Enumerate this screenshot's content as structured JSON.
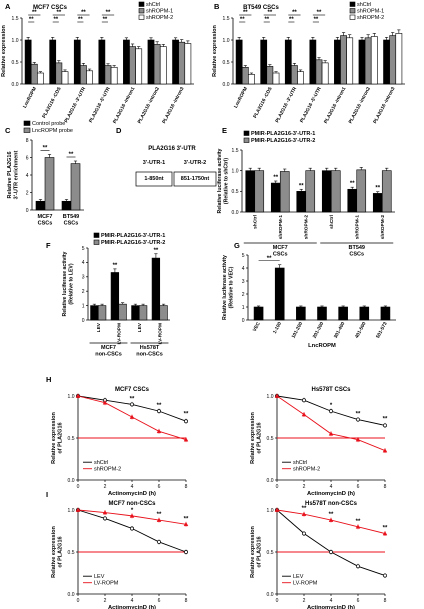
{
  "chart_data": [
    {
      "id": "A",
      "type": "bar",
      "panel_letter": "A",
      "title": "MCF7 CSCs",
      "ylabel": "Relative expression",
      "ylim": [
        0,
        1.5
      ],
      "yticks": [
        "0.0",
        "0.5",
        "1.0",
        "1.5"
      ],
      "categories": [
        "LncROPM",
        "PLA2G16 -CDS",
        "PLA2G16 -3'-UTR",
        "PLA2G16 -5'-UTR",
        "PLA2G16 -intron1",
        "PLA2G16 -intron2",
        "PLA2G16 -intron3"
      ],
      "series": [
        {
          "name": "shCtrl",
          "color": "#000000",
          "values": [
            1.0,
            1.0,
            1.0,
            1.0,
            1.0,
            1.0,
            1.0
          ],
          "err": [
            0.06,
            0.06,
            0.06,
            0.06,
            0.05,
            0.05,
            0.05
          ]
        },
        {
          "name": "shROPM-1",
          "color": "#8c8c8c",
          "values": [
            0.45,
            0.48,
            0.42,
            0.42,
            0.85,
            0.9,
            0.95
          ],
          "err": [
            0.04,
            0.05,
            0.05,
            0.04,
            0.06,
            0.06,
            0.06
          ]
        },
        {
          "name": "shROPM-2",
          "color": "#ffffff",
          "values": [
            0.25,
            0.28,
            0.3,
            0.38,
            0.8,
            0.85,
            0.92
          ],
          "err": [
            0.03,
            0.04,
            0.04,
            0.04,
            0.05,
            0.05,
            0.06
          ]
        }
      ],
      "sig": [
        {
          "group": 0,
          "label": "**",
          "row": "top"
        },
        {
          "group": 0,
          "label": "**",
          "row": "low"
        },
        {
          "group": 1,
          "label": "**",
          "row": "top"
        },
        {
          "group": 1,
          "label": "**",
          "row": "low"
        },
        {
          "group": 2,
          "label": "**",
          "row": "top"
        },
        {
          "group": 2,
          "label": "**",
          "row": "low"
        },
        {
          "group": 3,
          "label": "**",
          "row": "top"
        },
        {
          "group": 3,
          "label": "**",
          "row": "low"
        }
      ]
    },
    {
      "id": "B",
      "type": "bar",
      "panel_letter": "B",
      "title": "BT549 CSCs",
      "ylabel": "Relative expression",
      "ylim": [
        0,
        1.5
      ],
      "yticks": [
        "0.0",
        "0.5",
        "1.0",
        "1.5"
      ],
      "categories": [
        "LncROPM",
        "PLA2G16 -CDS",
        "PLA2G16 -3'-UTR",
        "PLA2G16 -5'-UTR",
        "PLA2G16 -intron1",
        "PLA2G16 -intron2",
        "PLA2G16 -intron3"
      ],
      "series": [
        {
          "name": "shCtrl",
          "color": "#000000",
          "values": [
            1.0,
            1.0,
            1.0,
            1.0,
            1.0,
            1.0,
            1.0
          ],
          "err": [
            0.06,
            0.06,
            0.06,
            0.06,
            0.06,
            0.06,
            0.06
          ]
        },
        {
          "name": "shROPM-1",
          "color": "#8c8c8c",
          "values": [
            0.38,
            0.4,
            0.42,
            0.55,
            1.1,
            1.05,
            1.1
          ],
          "err": [
            0.04,
            0.04,
            0.05,
            0.05,
            0.07,
            0.07,
            0.07
          ]
        },
        {
          "name": "shROPM-2",
          "color": "#ffffff",
          "values": [
            0.22,
            0.25,
            0.28,
            0.48,
            1.05,
            1.08,
            1.15
          ],
          "err": [
            0.03,
            0.03,
            0.04,
            0.05,
            0.07,
            0.07,
            0.08
          ]
        }
      ],
      "sig": [
        {
          "group": 0,
          "label": "**",
          "row": "top"
        },
        {
          "group": 0,
          "label": "**",
          "row": "low"
        },
        {
          "group": 1,
          "label": "**",
          "row": "top"
        },
        {
          "group": 1,
          "label": "**",
          "row": "low"
        },
        {
          "group": 2,
          "label": "**",
          "row": "top"
        },
        {
          "group": 2,
          "label": "**",
          "row": "low"
        },
        {
          "group": 3,
          "label": "**",
          "row": "top"
        },
        {
          "group": 3,
          "label": "**",
          "row": "low"
        }
      ]
    },
    {
      "id": "C",
      "type": "bar",
      "panel_letter": "C",
      "title": "",
      "ylabel": "Relative PLA2G16 3'-UTR enrichment",
      "ylim": [
        0,
        8
      ],
      "yticks": [
        "0",
        "2",
        "4",
        "6",
        "8"
      ],
      "categories": [
        "MCF7 CSCs",
        "BT549 CSCs"
      ],
      "series": [
        {
          "name": "Control probe",
          "color": "#000000",
          "values": [
            1.0,
            1.0
          ],
          "err": [
            0.2,
            0.2
          ]
        },
        {
          "name": "LncROPM probe",
          "color": "#8c8c8c",
          "values": [
            6.0,
            5.3
          ],
          "err": [
            0.35,
            0.3
          ]
        }
      ],
      "sig": [
        {
          "group": 0,
          "label": "**"
        },
        {
          "group": 1,
          "label": "**"
        }
      ]
    },
    {
      "id": "D",
      "type": "table",
      "panel_letter": "D",
      "title": "PLA2G16 3'-UTR",
      "rows": [
        [
          "3'-UTR-1",
          "3'-UTR-2"
        ],
        [
          "1-850nt",
          "851-1750nt"
        ]
      ]
    },
    {
      "id": "E",
      "type": "bar",
      "panel_letter": "E",
      "title": "",
      "ylabel": "Relative luciferase activity (Relative to shCtrl)",
      "ylim": [
        0,
        1.5
      ],
      "yticks": [
        "0.0",
        "0.5",
        "1.0",
        "1.5"
      ],
      "categories": [
        "shCtrl",
        "shROPM-1",
        "shROPM-2",
        "shCtrl",
        "shROPM-1",
        "shROPM-2"
      ],
      "category_groups": [
        {
          "label": "MCF7 CSCs",
          "from": 0,
          "to": 2
        },
        {
          "label": "BT549 CSCs",
          "from": 3,
          "to": 5
        }
      ],
      "series": [
        {
          "name": "PMIR-PLA2G16-3'-UTR-1",
          "color": "#000000",
          "values": [
            1.0,
            0.7,
            0.5,
            1.0,
            0.55,
            0.45
          ],
          "err": [
            0.06,
            0.05,
            0.05,
            0.06,
            0.05,
            0.04
          ]
        },
        {
          "name": "PMIR-PLA2G16-3'-UTR-2",
          "color": "#8c8c8c",
          "values": [
            1.0,
            0.98,
            1.0,
            1.0,
            1.02,
            1.0
          ],
          "err": [
            0.06,
            0.06,
            0.06,
            0.06,
            0.06,
            0.06
          ]
        }
      ],
      "sig": [
        {
          "group": 1,
          "label": "**"
        },
        {
          "group": 2,
          "label": "**"
        },
        {
          "group": 4,
          "label": "**"
        },
        {
          "group": 5,
          "label": "**"
        }
      ]
    },
    {
      "id": "F",
      "type": "bar",
      "panel_letter": "F",
      "title": "",
      "ylabel": "Relative luciferase activity (Relative to LEV)",
      "ylim": [
        0,
        5
      ],
      "yticks": [
        "0",
        "1",
        "2",
        "3",
        "4",
        "5"
      ],
      "categories": [
        "LEV",
        "LV-ROPM",
        "LEV",
        "LV-ROPM"
      ],
      "category_groups": [
        {
          "label": "MCF7 non-CSCs",
          "from": 0,
          "to": 1
        },
        {
          "label": "Hs578T non-CSCs",
          "from": 2,
          "to": 3
        }
      ],
      "series": [
        {
          "name": "PMIR-PLA2G16-3'-UTR-1",
          "color": "#000000",
          "values": [
            1.0,
            3.3,
            1.0,
            4.3
          ],
          "err": [
            0.1,
            0.25,
            0.1,
            0.3
          ]
        },
        {
          "name": "PMIR-PLA2G16-3'-UTR-2",
          "color": "#8c8c8c",
          "values": [
            1.0,
            1.1,
            1.0,
            1.0
          ],
          "err": [
            0.1,
            0.1,
            0.1,
            0.1
          ]
        }
      ],
      "sig": [
        {
          "group": 1,
          "label": "**"
        },
        {
          "group": 3,
          "label": "**"
        }
      ]
    },
    {
      "id": "G",
      "type": "bar",
      "panel_letter": "G",
      "title": "",
      "ylabel": "Relative luciferase activity (Relative to VEC)",
      "ylim": [
        0,
        5
      ],
      "yticks": [
        "0",
        "1",
        "2",
        "3",
        "4",
        "5"
      ],
      "xlabel": "LncROPM",
      "categories": [
        "VEC",
        "1-100",
        "101-200",
        "201-300",
        "301-400",
        "401-500",
        "501-573"
      ],
      "series": [
        {
          "name": "",
          "color": "#000000",
          "values": [
            1.0,
            4.0,
            1.0,
            1.0,
            1.0,
            1.0,
            1.0
          ],
          "err": [
            0.08,
            0.25,
            0.08,
            0.08,
            0.08,
            0.08,
            0.08
          ]
        }
      ],
      "sig": [
        {
          "group": 1,
          "label": "**"
        }
      ]
    },
    {
      "id": "H1",
      "type": "line",
      "panel_letter": "H",
      "title": "MCF7 CSCs",
      "xlabel": "ActinomycinD (h)",
      "ylabel": "Relative expression of PLA2G16",
      "xlim": [
        0,
        8
      ],
      "ylim": [
        0,
        1.0
      ],
      "xticks": [
        "0",
        "2",
        "4",
        "6",
        "8"
      ],
      "yticks": [
        "0.0",
        "0.5",
        "1.0"
      ],
      "reference_y": 0.5,
      "reference_color": "#e8101a",
      "series": [
        {
          "name": "shCtrl",
          "color": "#000000",
          "marker": "circle-open",
          "x": [
            0,
            2,
            4,
            6,
            8
          ],
          "y": [
            1.0,
            0.95,
            0.9,
            0.82,
            0.7
          ]
        },
        {
          "name": "shROPM-2",
          "color": "#e8101a",
          "marker": "triangle",
          "x": [
            0,
            2,
            4,
            6,
            8
          ],
          "y": [
            1.0,
            0.92,
            0.75,
            0.58,
            0.48
          ]
        }
      ],
      "sig": [
        {
          "x": 4,
          "y": 0.9,
          "label": "**"
        },
        {
          "x": 6,
          "y": 0.82,
          "label": "**"
        },
        {
          "x": 8,
          "y": 0.72,
          "label": "**"
        }
      ]
    },
    {
      "id": "H2",
      "type": "line",
      "panel_letter": "",
      "title": "Hs578T CSCs",
      "xlabel": "ActinomycinD (h)",
      "ylabel": "Relative expression of PLA2G16",
      "xlim": [
        0,
        8
      ],
      "ylim": [
        0,
        1.0
      ],
      "xticks": [
        "0",
        "2",
        "4",
        "6",
        "8"
      ],
      "yticks": [
        "0.0",
        "0.5",
        "1.0"
      ],
      "reference_y": 0.5,
      "reference_color": "#e8101a",
      "series": [
        {
          "name": "shCtrl",
          "color": "#000000",
          "marker": "circle-open",
          "x": [
            0,
            2,
            4,
            6,
            8
          ],
          "y": [
            1.0,
            0.95,
            0.82,
            0.72,
            0.65
          ]
        },
        {
          "name": "shROPM-2",
          "color": "#e8101a",
          "marker": "triangle",
          "x": [
            0,
            2,
            4,
            6,
            8
          ],
          "y": [
            1.0,
            0.78,
            0.55,
            0.48,
            0.35
          ]
        }
      ],
      "sig": [
        {
          "x": 4,
          "y": 0.82,
          "label": "*"
        },
        {
          "x": 6,
          "y": 0.72,
          "label": "**"
        },
        {
          "x": 8,
          "y": 0.66,
          "label": "**"
        }
      ]
    },
    {
      "id": "I1",
      "type": "line",
      "panel_letter": "I",
      "title": "MCF7 non-CSCs",
      "xlabel": "ActinomycinD (h)",
      "ylabel": "Relative expression of PLA2G16",
      "xlim": [
        0,
        8
      ],
      "ylim": [
        0,
        1.0
      ],
      "xticks": [
        "0",
        "2",
        "4",
        "6",
        "8"
      ],
      "yticks": [
        "0.0",
        "0.5",
        "1.0"
      ],
      "reference_y": 0.5,
      "reference_color": "#e8101a",
      "series": [
        {
          "name": "LEV",
          "color": "#000000",
          "marker": "circle-open",
          "x": [
            0,
            2,
            4,
            6,
            8
          ],
          "y": [
            1.0,
            0.9,
            0.78,
            0.62,
            0.5
          ]
        },
        {
          "name": "LV-ROPM",
          "color": "#e8101a",
          "marker": "triangle",
          "x": [
            0,
            2,
            4,
            6,
            8
          ],
          "y": [
            1.0,
            0.97,
            0.93,
            0.88,
            0.83
          ]
        }
      ],
      "sig": [
        {
          "x": 4,
          "y": 0.93,
          "label": "*"
        },
        {
          "x": 6,
          "y": 0.88,
          "label": "**"
        },
        {
          "x": 8,
          "y": 0.83,
          "label": "**"
        }
      ]
    },
    {
      "id": "I2",
      "type": "line",
      "panel_letter": "",
      "title": "Hs578T non-CSCs",
      "xlabel": "ActinomycinD (h)",
      "ylabel": "Relative expression of PLA2G16",
      "xlim": [
        0,
        8
      ],
      "ylim": [
        0,
        1.0
      ],
      "xticks": [
        "0",
        "2",
        "4",
        "6",
        "8"
      ],
      "yticks": [
        "0.0",
        "0.5",
        "1.0"
      ],
      "reference_y": 0.5,
      "reference_color": "#e8101a",
      "series": [
        {
          "name": "LEV",
          "color": "#000000",
          "marker": "circle-open",
          "x": [
            0,
            2,
            4,
            6,
            8
          ],
          "y": [
            1.0,
            0.72,
            0.5,
            0.33,
            0.22
          ]
        },
        {
          "name": "LV-ROPM",
          "color": "#e8101a",
          "marker": "triangle",
          "x": [
            0,
            2,
            4,
            6,
            8
          ],
          "y": [
            1.0,
            0.95,
            0.88,
            0.8,
            0.72
          ]
        }
      ],
      "sig": [
        {
          "x": 2,
          "y": 0.95,
          "label": "**"
        },
        {
          "x": 4,
          "y": 0.88,
          "label": "**"
        },
        {
          "x": 6,
          "y": 0.8,
          "label": "**"
        },
        {
          "x": 8,
          "y": 0.72,
          "label": "**"
        }
      ]
    }
  ]
}
